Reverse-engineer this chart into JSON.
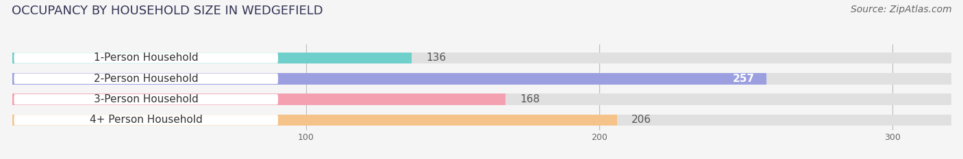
{
  "title": "OCCUPANCY BY HOUSEHOLD SIZE IN WEDGEFIELD",
  "source": "Source: ZipAtlas.com",
  "categories": [
    "1-Person Household",
    "2-Person Household",
    "3-Person Household",
    "4+ Person Household"
  ],
  "values": [
    136,
    257,
    168,
    206
  ],
  "bar_colors": [
    "#6ecfcb",
    "#9b9fe0",
    "#f4a0b0",
    "#f5c38a"
  ],
  "label_colors": [
    "#555555",
    "#ffffff",
    "#555555",
    "#555555"
  ],
  "xlim": [
    0,
    320
  ],
  "xticks": [
    100,
    200,
    300
  ],
  "background_color": "#f5f5f5",
  "bar_bg_color": "#e0e0e0",
  "title_fontsize": 13,
  "source_fontsize": 10,
  "label_fontsize": 11,
  "value_fontsize": 11
}
